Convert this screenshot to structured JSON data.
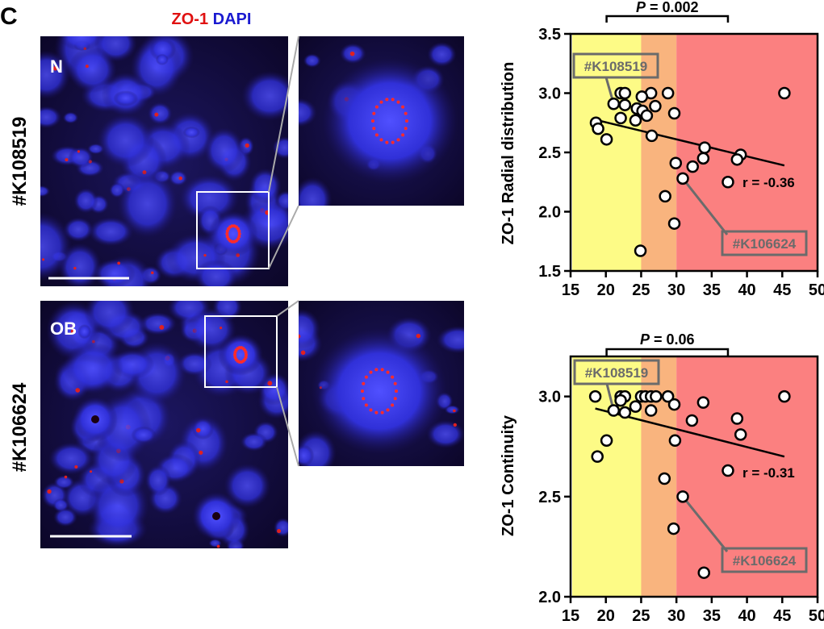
{
  "panel_letter": "C",
  "stain_legend": {
    "zo1": "ZO-1",
    "dapi": "DAPI",
    "zo1_color": "#e01010",
    "dapi_color": "#1a1ad0"
  },
  "rows": [
    {
      "sample": "#K108519",
      "group": "N"
    },
    {
      "sample": "#K106624",
      "group": "OB"
    }
  ],
  "colors": {
    "band_yellow": "#fdfb86",
    "band_orange": "#f9b47e",
    "band_red": "#fb8080",
    "label_gray": "#6b6b6b"
  },
  "chart_data": [
    {
      "type": "scatter",
      "ylabel": "ZO-1 Radial distribution",
      "xlim": [
        15,
        50
      ],
      "ylim": [
        1.5,
        3.5
      ],
      "xticks": [
        "15",
        "20",
        "25",
        "30",
        "35",
        "40",
        "45",
        "50"
      ],
      "yticks": [
        "1.5",
        "2.0",
        "2.5",
        "3.0",
        "3.5"
      ],
      "background_bands": [
        {
          "from": 15,
          "to": 25,
          "color": "yellow"
        },
        {
          "from": 25,
          "to": 30,
          "color": "orange"
        },
        {
          "from": 30,
          "to": 50,
          "color": "red"
        }
      ],
      "points": [
        [
          45.3,
          3.0
        ],
        [
          28.8,
          3.0
        ],
        [
          26.4,
          3.0
        ],
        [
          25.1,
          2.97
        ],
        [
          22.1,
          3.0
        ],
        [
          22.7,
          3.0
        ],
        [
          22.7,
          2.9
        ],
        [
          21.1,
          2.91
        ],
        [
          27.0,
          2.89
        ],
        [
          24.4,
          2.87
        ],
        [
          29.7,
          2.83
        ],
        [
          25.2,
          2.85
        ],
        [
          25.8,
          2.81
        ],
        [
          24.2,
          2.77
        ],
        [
          22.1,
          2.79
        ],
        [
          18.6,
          2.75
        ],
        [
          18.9,
          2.7
        ],
        [
          20.1,
          2.61
        ],
        [
          26.5,
          2.64
        ],
        [
          34.0,
          2.54
        ],
        [
          33.8,
          2.45
        ],
        [
          39.1,
          2.48
        ],
        [
          38.6,
          2.44
        ],
        [
          29.9,
          2.41
        ],
        [
          32.3,
          2.38
        ],
        [
          30.9,
          2.28
        ],
        [
          37.3,
          2.25
        ],
        [
          28.4,
          2.13
        ],
        [
          29.7,
          1.9
        ],
        [
          24.9,
          1.67
        ]
      ],
      "trendline": [
        [
          18.9,
          2.77
        ],
        [
          45.3,
          2.39
        ]
      ],
      "r_label": "r = -0.36",
      "p_label": {
        "italic": "P",
        "text": " = 0.002"
      },
      "bracket": [
        20.1,
        37.3
      ],
      "annotations": [
        {
          "label": "#K108519",
          "point": [
            21.1,
            2.91
          ]
        },
        {
          "label": "#K106624",
          "point": [
            30.9,
            2.28
          ]
        }
      ]
    },
    {
      "type": "scatter",
      "ylabel": "ZO-1 Continuity",
      "xlim": [
        15,
        50
      ],
      "ylim": [
        2.0,
        3.2
      ],
      "xticks": [
        "15",
        "20",
        "25",
        "30",
        "35",
        "40",
        "45",
        "50"
      ],
      "yticks": [
        "2.0",
        "2.5",
        "3.0"
      ],
      "background_bands": [
        {
          "from": 15,
          "to": 25,
          "color": "yellow"
        },
        {
          "from": 25,
          "to": 30,
          "color": "orange"
        },
        {
          "from": 30,
          "to": 50,
          "color": "red"
        }
      ],
      "points": [
        [
          18.5,
          3.0
        ],
        [
          22.1,
          3.0
        ],
        [
          22.7,
          3.0
        ],
        [
          22.1,
          2.98
        ],
        [
          24.2,
          2.95
        ],
        [
          25.0,
          3.0
        ],
        [
          25.6,
          3.0
        ],
        [
          26.4,
          3.0
        ],
        [
          27.1,
          3.0
        ],
        [
          28.8,
          3.0
        ],
        [
          29.7,
          2.96
        ],
        [
          33.8,
          2.97
        ],
        [
          45.3,
          3.0
        ],
        [
          21.1,
          2.93
        ],
        [
          22.7,
          2.92
        ],
        [
          26.4,
          2.93
        ],
        [
          32.2,
          2.88
        ],
        [
          38.6,
          2.89
        ],
        [
          39.1,
          2.81
        ],
        [
          20.1,
          2.78
        ],
        [
          29.8,
          2.78
        ],
        [
          18.8,
          2.7
        ],
        [
          37.3,
          2.63
        ],
        [
          28.3,
          2.59
        ],
        [
          30.9,
          2.5
        ],
        [
          29.6,
          2.34
        ],
        [
          33.9,
          2.12
        ]
      ],
      "trendline": [
        [
          18.5,
          2.94
        ],
        [
          45.3,
          2.7
        ]
      ],
      "r_label": "r = -0.31",
      "p_label": {
        "italic": "P",
        "text": " = 0.06"
      },
      "bracket": [
        20.1,
        37.3
      ],
      "annotations": [
        {
          "label": "#K108519",
          "point": [
            21.1,
            2.93
          ]
        },
        {
          "label": "#K106624",
          "point": [
            30.9,
            2.5
          ]
        }
      ]
    }
  ]
}
